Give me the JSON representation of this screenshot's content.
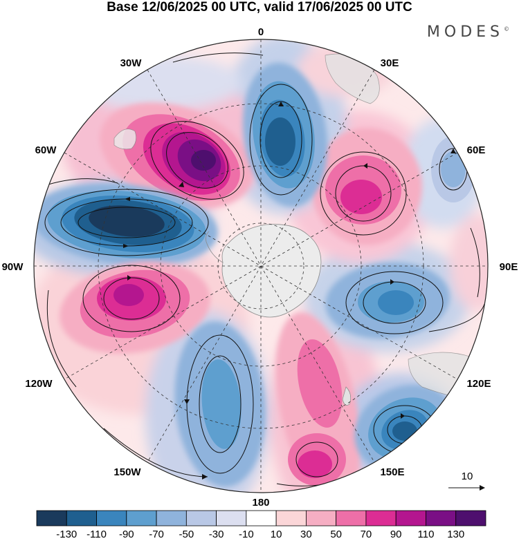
{
  "title": "Base 12/06/2025 00 UTC, valid 17/06/2025 00 UTC",
  "logo": "MODES",
  "logo_mark": "©",
  "longitude_labels": {
    "lon_0": "0",
    "lon_30e": "30E",
    "lon_60e": "60E",
    "lon_90e": "90E",
    "lon_120e": "120E",
    "lon_150e": "150E",
    "lon_180": "180",
    "lon_150w": "150W",
    "lon_120w": "120W",
    "lon_90w": "90W",
    "lon_60w": "60W",
    "lon_30w": "30W"
  },
  "vector_reference": {
    "label": "10"
  },
  "colorbar": {
    "labels": [
      "-130",
      "-110",
      "-90",
      "-70",
      "-50",
      "-30",
      "-10",
      "10",
      "30",
      "50",
      "70",
      "90",
      "110",
      "130"
    ],
    "colors": [
      "#1a3a5c",
      "#1f5f8f",
      "#3a85bd",
      "#5e9fcf",
      "#8fb3dc",
      "#b9c8e6",
      "#dcdff0",
      "#ffffff",
      "#fbd6d8",
      "#f6aec3",
      "#ee6fa8",
      "#dc2d94",
      "#b4168f",
      "#7a0f85",
      "#4e0f6e"
    ]
  },
  "anomaly_centers": [
    {
      "sign": "positive",
      "level": 130,
      "sector": "45W"
    },
    {
      "sign": "negative",
      "level": -130,
      "sector": "75W"
    },
    {
      "sign": "positive",
      "level": 90,
      "sector": "110W"
    },
    {
      "sign": "negative",
      "level": -70,
      "sector": "170W"
    },
    {
      "sign": "positive",
      "level": 90,
      "sector": "160E"
    },
    {
      "sign": "negative",
      "level": -110,
      "sector": "130E"
    },
    {
      "sign": "negative",
      "level": -90,
      "sector": "95E"
    },
    {
      "sign": "positive",
      "level": 90,
      "sector": "45E"
    },
    {
      "sign": "negative",
      "level": -110,
      "sector": "10E"
    },
    {
      "sign": "negative",
      "level": -50,
      "sector": "65E"
    }
  ]
}
